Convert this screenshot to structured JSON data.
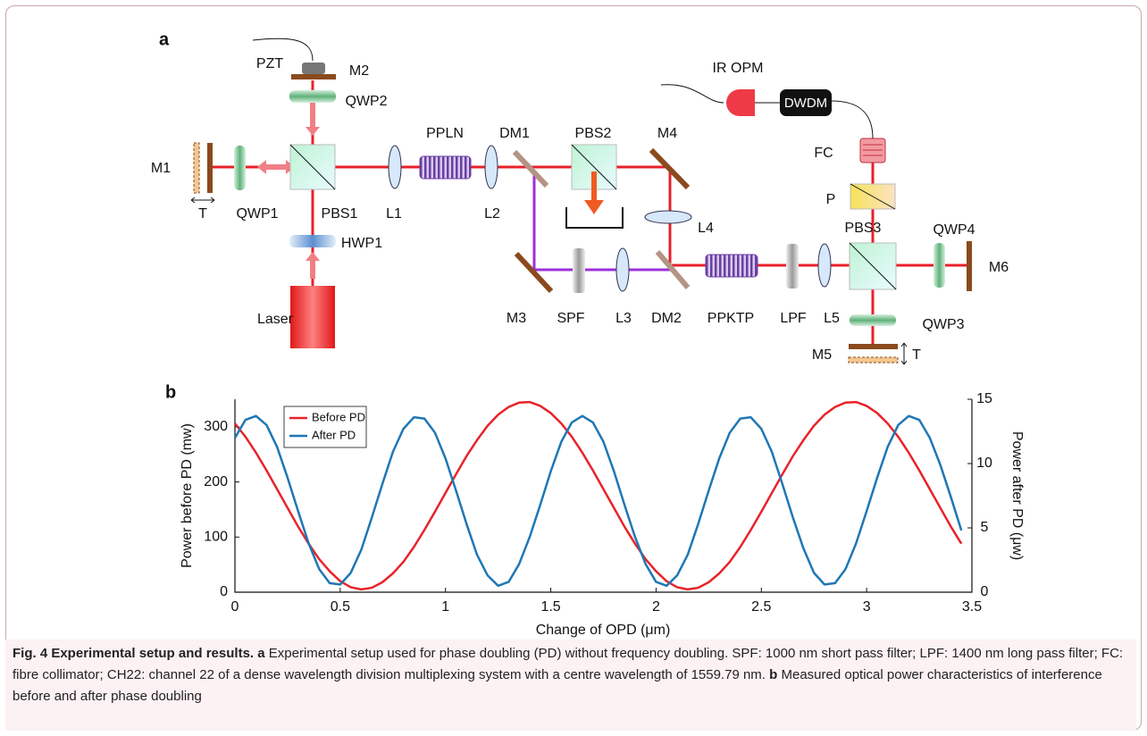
{
  "diagram": {
    "label": "a",
    "components": [
      "PZT",
      "M2",
      "QWP2",
      "M1",
      "T",
      "QWP1",
      "PBS1",
      "L1",
      "PPLN",
      "L2",
      "DM1",
      "PBS2",
      "M4",
      "L4",
      "HWP1",
      "Laser",
      "M3",
      "SPF",
      "L3",
      "DM2",
      "PPKTP",
      "LPF",
      "L5",
      "PBS3",
      "QWP4",
      "M6",
      "QWP3",
      "M5",
      "T",
      "P",
      "FC",
      "IR OPM",
      "DWDM"
    ]
  },
  "chart_data": {
    "type": "line",
    "panel_label": "b",
    "xlabel": "Change of OPD (μm)",
    "ylabel": "Power before PD (mw)",
    "y2label": "Power after PD (μw)",
    "x": [
      0,
      0.05,
      0.1,
      0.15,
      0.2,
      0.25,
      0.3,
      0.35,
      0.4,
      0.45,
      0.5,
      0.55,
      0.6,
      0.65,
      0.7,
      0.75,
      0.8,
      0.85,
      0.9,
      0.95,
      1,
      1.05,
      1.1,
      1.15,
      1.2,
      1.25,
      1.3,
      1.35,
      1.4,
      1.45,
      1.5,
      1.55,
      1.6,
      1.65,
      1.7,
      1.75,
      1.8,
      1.85,
      1.9,
      1.95,
      2,
      2.05,
      2.1,
      2.15,
      2.2,
      2.25,
      2.3,
      2.35,
      2.4,
      2.45,
      2.5,
      2.55,
      2.6,
      2.65,
      2.7,
      2.75,
      2.8,
      2.85,
      2.9,
      2.95,
      3,
      3.05,
      3.1,
      3.15,
      3.2,
      3.25,
      3.3,
      3.35,
      3.4,
      3.45
    ],
    "series": [
      {
        "name": "Before PD",
        "color": "#e8232a",
        "values": [
          306,
          282,
          253,
          221,
          187,
          153,
          119,
          88,
          60,
          38,
          20,
          9,
          5,
          8,
          18,
          34,
          55,
          82,
          113,
          146,
          180,
          214,
          247,
          276,
          302,
          322,
          336,
          344,
          345,
          338,
          325,
          306,
          282,
          253,
          221,
          187,
          153,
          119,
          88,
          60,
          38,
          20,
          9,
          5,
          8,
          18,
          34,
          55,
          82,
          113,
          146,
          180,
          214,
          247,
          276,
          302,
          322,
          336,
          344,
          345,
          338,
          325,
          306,
          282,
          253,
          221,
          187,
          153,
          119,
          88
        ]
      },
      {
        "name": "After PD",
        "color": "#1f77b4",
        "axis": "y2",
        "values": [
          12.0,
          13.4,
          13.7,
          13.0,
          11.3,
          8.9,
          6.3,
          3.8,
          1.8,
          0.7,
          0.6,
          1.5,
          3.3,
          5.8,
          8.4,
          10.9,
          12.7,
          13.6,
          13.5,
          12.4,
          10.4,
          7.9,
          5.3,
          2.9,
          1.3,
          0.5,
          0.8,
          2.2,
          4.3,
          6.8,
          9.4,
          11.7,
          13.2,
          13.7,
          13.2,
          11.7,
          9.4,
          6.8,
          4.3,
          2.2,
          0.8,
          0.5,
          1.3,
          2.9,
          5.3,
          7.9,
          10.4,
          12.4,
          13.5,
          13.6,
          12.7,
          10.9,
          8.4,
          5.8,
          3.4,
          1.5,
          0.6,
          0.7,
          1.8,
          3.8,
          6.3,
          8.9,
          11.3,
          13.0,
          13.7,
          13.4,
          12.0,
          9.9,
          7.4,
          4.8
        ]
      }
    ],
    "xlim": [
      0,
      3.5
    ],
    "xticks": [
      0,
      0.5,
      1,
      1.5,
      2,
      2.5,
      3,
      3.5
    ],
    "ylim": [
      0,
      350
    ],
    "yticks": [
      0,
      100,
      200,
      300
    ],
    "y2lim": [
      0,
      15
    ],
    "y2ticks": [
      0,
      5,
      10,
      15
    ],
    "legend": "upper left"
  },
  "caption": {
    "title": "Fig. 4 Experimental setup and results.",
    "parts": [
      {
        "label": "a",
        "text": "Experimental setup used for phase doubling (PD) without frequency doubling. SPF: 1000 nm short pass filter; LPF: 1400 nm long pass filter; FC: fibre collimator; CH22: channel 22 of a dense wavelength division multiplexing system with a centre wavelength of 1559.79 nm."
      },
      {
        "label": "b",
        "text": "Measured optical power characteristics of interference before and after phase doubling"
      }
    ]
  }
}
